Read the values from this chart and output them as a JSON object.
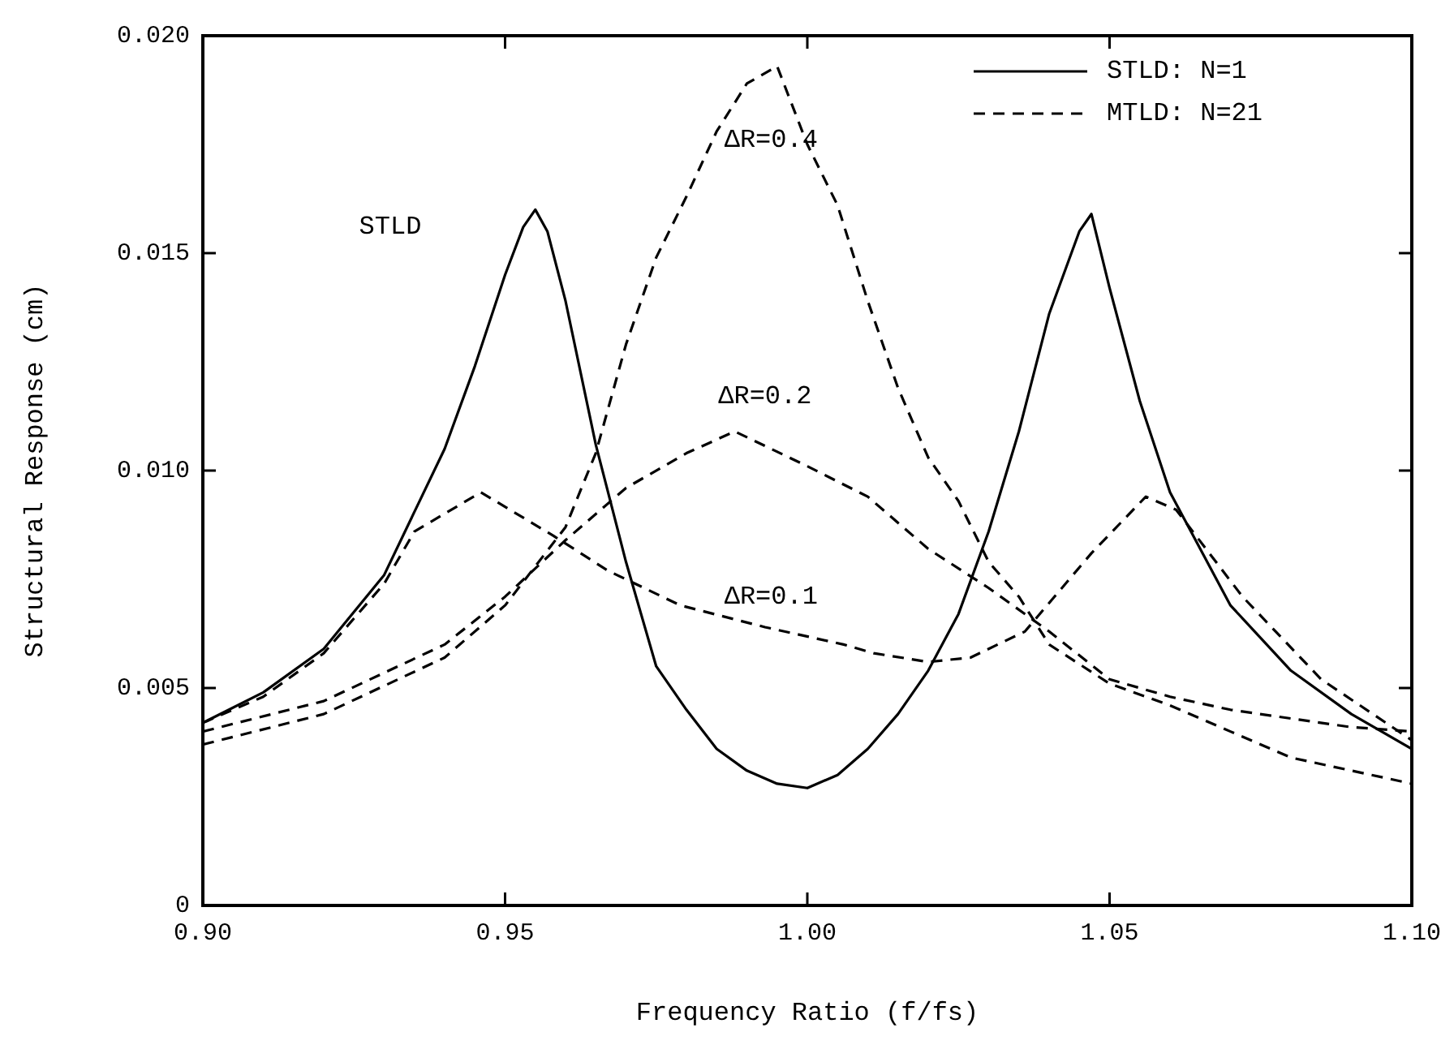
{
  "chart_data": {
    "type": "line",
    "xlabel": "Frequency Ratio (f/fs)",
    "ylabel": "Structural Response (cm)",
    "xlim": [
      0.9,
      1.1
    ],
    "ylim": [
      0,
      0.02
    ],
    "xticks": [
      {
        "value": 0.9,
        "label": "0.90"
      },
      0.95,
      {
        "value": 1.0,
        "label": "1.00"
      },
      1.05,
      {
        "value": 1.1,
        "label": "1.10"
      }
    ],
    "yticks": [
      0,
      0.005,
      {
        "value": 0.01,
        "label": "0.010"
      },
      0.015,
      {
        "value": 0.02,
        "label": "0.020"
      }
    ],
    "grid": false,
    "legend": "top right",
    "marker": "none",
    "series": [
      {
        "name": "STLD: N=1",
        "color": "#000000",
        "line_style": "solid",
        "x": [
          0.9,
          0.91,
          0.92,
          0.93,
          0.94,
          0.945,
          0.95,
          0.953,
          0.955,
          0.957,
          0.96,
          0.965,
          0.97,
          0.975,
          0.98,
          0.985,
          0.99,
          0.995,
          1.0,
          1.005,
          1.01,
          1.015,
          1.02,
          1.025,
          1.03,
          1.035,
          1.04,
          1.045,
          1.047,
          1.05,
          1.055,
          1.06,
          1.065,
          1.07,
          1.08,
          1.09,
          1.1
        ],
        "values": [
          0.0042,
          0.0049,
          0.0059,
          0.0076,
          0.0105,
          0.0124,
          0.0145,
          0.0156,
          0.016,
          0.0155,
          0.0139,
          0.0106,
          0.0079,
          0.0055,
          0.0045,
          0.0036,
          0.0031,
          0.0028,
          0.0027,
          0.003,
          0.0036,
          0.0044,
          0.0054,
          0.0067,
          0.0086,
          0.0109,
          0.0136,
          0.0155,
          0.0159,
          0.0142,
          0.0116,
          0.0095,
          0.0082,
          0.0069,
          0.0054,
          0.0044,
          0.0036
        ]
      },
      {
        "name": "MTLD: N=21",
        "color": "#000000",
        "line_style": "dashed",
        "x": [
          0.9,
          0.91,
          0.92,
          0.93,
          0.935,
          0.946,
          0.958,
          0.967,
          0.979,
          0.993,
          1.006,
          1.011,
          1.02,
          1.027,
          1.036,
          1.047,
          1.056,
          1.061,
          1.072,
          1.085,
          1.1
        ],
        "values": [
          0.0042,
          0.0048,
          0.0058,
          0.0074,
          0.0086,
          0.0095,
          0.0085,
          0.0077,
          0.0069,
          0.0064,
          0.006,
          0.0058,
          0.0056,
          0.0057,
          0.0063,
          0.0081,
          0.0094,
          0.0091,
          0.0071,
          0.0052,
          0.0038
        ]
      },
      {
        "color": "#000000",
        "line_style": "dashed",
        "x": [
          0.9,
          0.92,
          0.94,
          0.95,
          0.96,
          0.97,
          0.98,
          0.988,
          1.0,
          1.01,
          1.02,
          1.03,
          1.04,
          1.05,
          1.06,
          1.07,
          1.08,
          1.09,
          1.1
        ],
        "values": [
          0.004,
          0.0047,
          0.006,
          0.0071,
          0.0084,
          0.0096,
          0.0104,
          0.0109,
          0.0101,
          0.0094,
          0.0082,
          0.0073,
          0.0063,
          0.0052,
          0.0048,
          0.0045,
          0.0043,
          0.0041,
          0.004
        ]
      },
      {
        "color": "#000000",
        "line_style": "dashed",
        "x": [
          0.9,
          0.92,
          0.94,
          0.95,
          0.96,
          0.965,
          0.97,
          0.975,
          0.98,
          0.985,
          0.99,
          0.995,
          1.0,
          1.005,
          1.01,
          1.015,
          1.02,
          1.025,
          1.03,
          1.035,
          1.04,
          1.05,
          1.06,
          1.07,
          1.08,
          1.09,
          1.1
        ],
        "values": [
          0.0037,
          0.0044,
          0.0057,
          0.0069,
          0.0087,
          0.0104,
          0.0129,
          0.0149,
          0.0163,
          0.0178,
          0.0189,
          0.0193,
          0.0175,
          0.0161,
          0.0139,
          0.0119,
          0.0103,
          0.0093,
          0.0079,
          0.0071,
          0.006,
          0.0051,
          0.0046,
          0.004,
          0.0034,
          0.0031,
          0.0028
        ]
      }
    ],
    "annotations": [
      "STLD",
      "ΔR=0.4",
      "ΔR=0.2",
      "ΔR=0.1"
    ]
  }
}
